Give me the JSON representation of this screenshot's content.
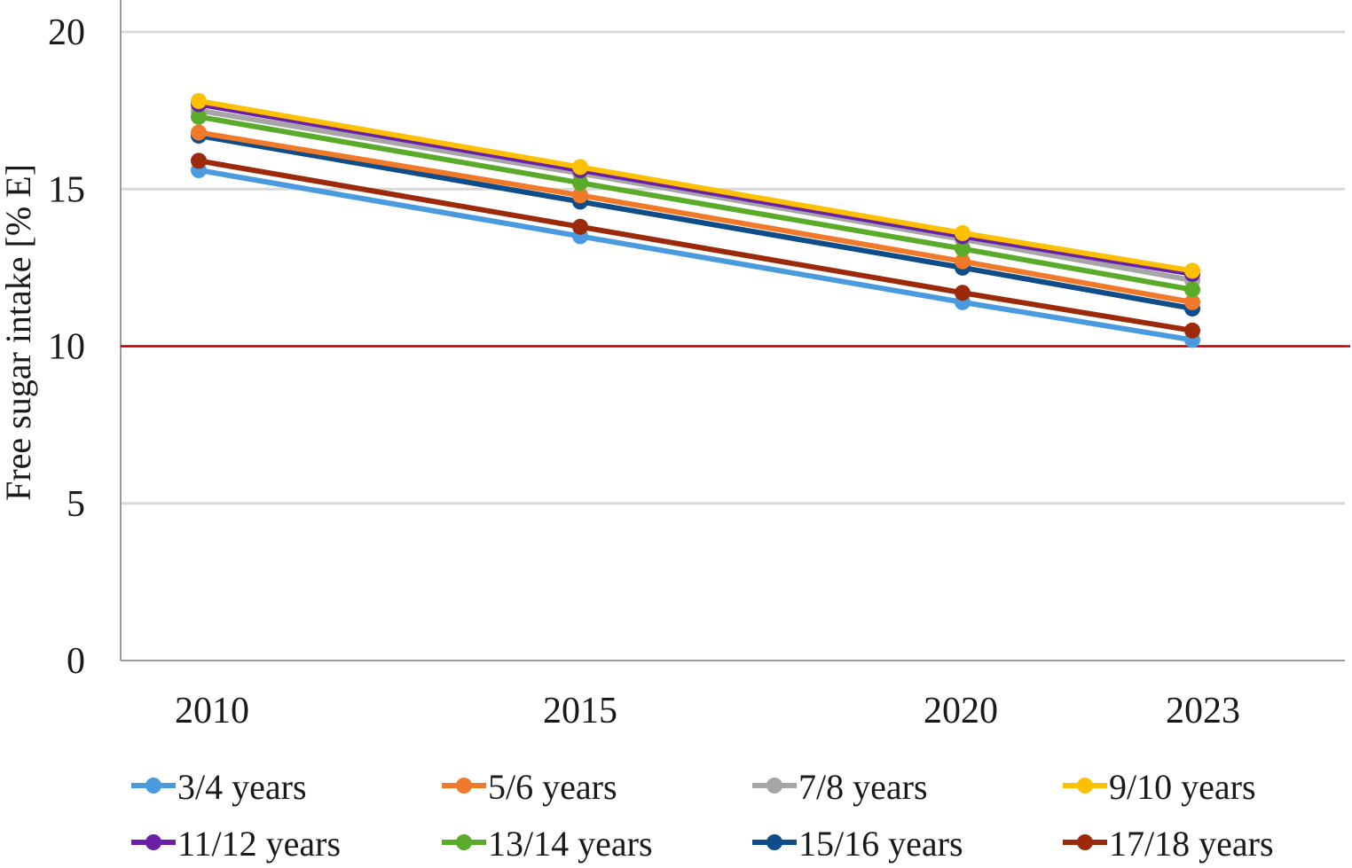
{
  "chart_data": {
    "type": "line",
    "title": "",
    "xlabel": "",
    "ylabel": "Free sugar intake [% E]",
    "ylim": [
      0,
      20
    ],
    "yticks": [
      0,
      5,
      10,
      15,
      20
    ],
    "ytick_labels": [
      "0",
      "5",
      "10",
      "15",
      "20"
    ],
    "x": [
      2010,
      2015,
      2020,
      2023
    ],
    "x_labels": [
      "2010",
      "2015",
      "2020",
      "2023"
    ],
    "grid": true,
    "legend_position": "bottom",
    "reference_line": {
      "value": 10,
      "color": "#c00000"
    },
    "series": [
      {
        "name": "3/4 years",
        "color": "#4a9ae0",
        "values": [
          15.6,
          13.5,
          11.4,
          10.2
        ]
      },
      {
        "name": "5/6 years",
        "color": "#f07a2a",
        "values": [
          16.8,
          14.8,
          12.7,
          11.4
        ]
      },
      {
        "name": "7/8 years",
        "color": "#a6a6a6",
        "values": [
          17.5,
          15.5,
          13.4,
          12.1
        ]
      },
      {
        "name": "9/10 years",
        "color": "#ffc000",
        "values": [
          17.8,
          15.7,
          13.6,
          12.4
        ]
      },
      {
        "name": "11/12 years",
        "color": "#6a1fa8",
        "values": [
          17.7,
          15.6,
          13.5,
          12.3
        ]
      },
      {
        "name": "13/14 years",
        "color": "#5aab2a",
        "values": [
          17.3,
          15.2,
          13.1,
          11.8
        ]
      },
      {
        "name": "15/16 years",
        "color": "#0f4c8a",
        "values": [
          16.7,
          14.6,
          12.5,
          11.2
        ]
      },
      {
        "name": "17/18 years",
        "color": "#9c2a0a",
        "values": [
          15.9,
          13.8,
          11.7,
          10.5
        ]
      }
    ]
  }
}
